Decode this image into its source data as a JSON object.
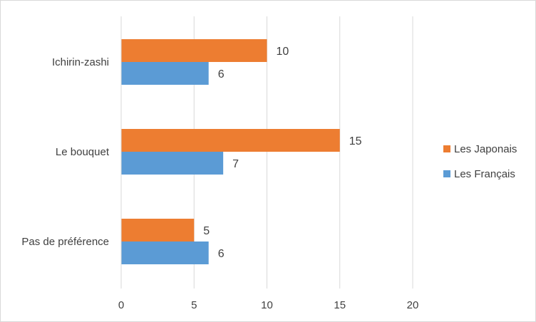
{
  "chart_data": {
    "type": "bar",
    "orientation": "horizontal",
    "categories": [
      "Ichirin-zashi",
      "Le bouquet",
      "Pas de préférence"
    ],
    "series": [
      {
        "name": "Les Japonais",
        "values": [
          10,
          15,
          5
        ],
        "color": "#ED7D31"
      },
      {
        "name": "Les Français",
        "values": [
          6,
          7,
          6
        ],
        "color": "#5B9BD5"
      }
    ],
    "xlim": [
      0,
      20
    ],
    "xticks": [
      0,
      5,
      10,
      15,
      20
    ],
    "grid": true,
    "data_labels": true,
    "legend_position": "right"
  }
}
